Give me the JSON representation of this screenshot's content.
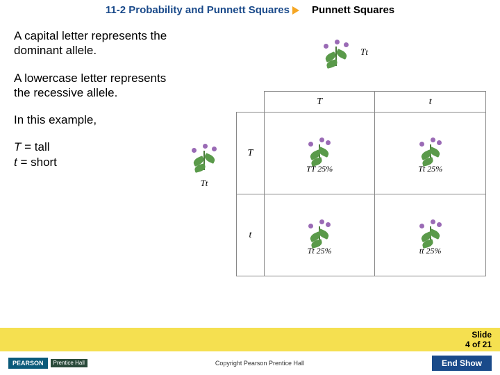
{
  "header": {
    "section": "11-2 Probability and Punnett Squares",
    "title": "Punnett Squares"
  },
  "text": {
    "p1": "A capital letter represents the dominant allele.",
    "p2": "A lowercase letter represents the recessive allele.",
    "p3": "In this example,",
    "p4a": "T",
    "p4b": " = tall",
    "p5a": "t",
    "p5b": " = short"
  },
  "punnett": {
    "parent_top_genotype": "Tt",
    "parent_left_genotype": "Tt",
    "col_headers": [
      "T",
      "t"
    ],
    "row_headers": [
      "T",
      "t"
    ],
    "cells": [
      [
        "TT 25%",
        "Tt 25%"
      ],
      [
        "Tt 25%",
        "tt 25%"
      ]
    ],
    "plant_colors": {
      "stem": "#4a7a3a",
      "leaf": "#5a9a4a",
      "flower": "#9a6ab5"
    }
  },
  "footer": {
    "slide_label": "Slide",
    "slide_num": "4 of 21",
    "copyright": "Copyright Pearson Prentice Hall",
    "end_show": "End Show",
    "logo_pearson": "PEARSON",
    "logo_ph": "Prentice Hall"
  },
  "colors": {
    "title_blue": "#1a4a8a",
    "arrow_orange": "#f5a623",
    "yellow_bar": "#f5e050",
    "end_show_bg": "#1a4a8a"
  }
}
